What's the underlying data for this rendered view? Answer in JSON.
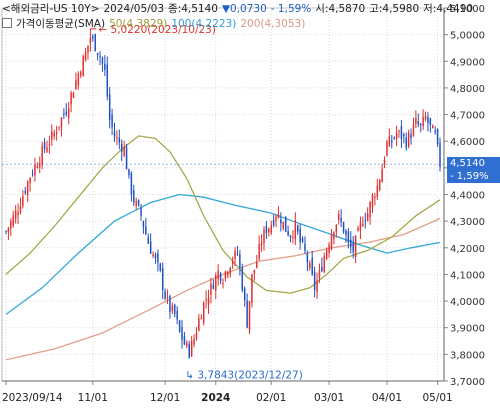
{
  "header": {
    "title": "<해외금리-US 10Y>",
    "date": "2024/05/03",
    "close_label": "종:4,5140",
    "change": "▼0,0730",
    "change_pct": "- 1,59%",
    "open_label": "시:4,5870",
    "high_label": "고:4,5980",
    "low_label": "저:4,4490"
  },
  "legend": {
    "title": "가격이동평균(SMA)",
    "ma50": "50(4,3829)",
    "ma100": "100(4,2223)",
    "ma200": "200(4,3053)"
  },
  "price_tag": {
    "price": "4,5140",
    "pct": "- 1,59%"
  },
  "annotations": {
    "high": "5,0220(2023/10/23)",
    "low": "3,7843(2023/12/27)"
  },
  "colors": {
    "up": "#e03030",
    "down": "#2050c0",
    "ma50": "#a7a84a",
    "ma100": "#34a8d8",
    "ma200": "#e2a08a",
    "tag": "#2e6fd1",
    "grid": "#d9d9d9"
  },
  "chart_data": {
    "type": "candlestick",
    "ylim": [
      3.7,
      5.1
    ],
    "y_ticks": [
      "5,1000",
      "5,0000",
      "4,9000",
      "4,8000",
      "4,7000",
      "4,6000",
      "4,5000",
      "4,4000",
      "4,3000",
      "4,2000",
      "4,1000",
      "4,0000",
      "3,9000",
      "3,8000",
      "3,7000"
    ],
    "x_ticks": [
      "2023/09/14",
      "11/01",
      "12/01",
      "2024",
      "02/01",
      "03/01",
      "04/01",
      "05/01"
    ],
    "close_path": [
      [
        0,
        4.26
      ],
      [
        5,
        4.35
      ],
      [
        10,
        4.47
      ],
      [
        15,
        4.56
      ],
      [
        20,
        4.63
      ],
      [
        25,
        4.72
      ],
      [
        28,
        4.8
      ],
      [
        31,
        4.88
      ],
      [
        33,
        4.93
      ],
      [
        35,
        4.99
      ],
      [
        37,
        4.96
      ],
      [
        39,
        4.92
      ],
      [
        41,
        4.86
      ],
      [
        43,
        4.68
      ],
      [
        45,
        4.62
      ],
      [
        49,
        4.57
      ],
      [
        51,
        4.45
      ],
      [
        53,
        4.38
      ],
      [
        56,
        4.32
      ],
      [
        59,
        4.22
      ],
      [
        62,
        4.15
      ],
      [
        64,
        4.1
      ],
      [
        66,
        4.02
      ],
      [
        68,
        3.97
      ],
      [
        70,
        3.95
      ],
      [
        72,
        3.88
      ],
      [
        74,
        3.84
      ],
      [
        76,
        3.81
      ],
      [
        78,
        3.86
      ],
      [
        80,
        3.93
      ],
      [
        82,
        3.99
      ],
      [
        84,
        4.03
      ],
      [
        86,
        4.07
      ],
      [
        88,
        4.11
      ],
      [
        90,
        4.09
      ],
      [
        92,
        4.13
      ],
      [
        94,
        4.16
      ],
      [
        96,
        4.18
      ],
      [
        98,
        4.06
      ],
      [
        100,
        3.92
      ],
      [
        102,
        4.09
      ],
      [
        104,
        4.15
      ],
      [
        106,
        4.23
      ],
      [
        108,
        4.27
      ],
      [
        110,
        4.29
      ],
      [
        112,
        4.33
      ],
      [
        114,
        4.31
      ],
      [
        116,
        4.27
      ],
      [
        118,
        4.25
      ],
      [
        120,
        4.28
      ],
      [
        122,
        4.22
      ],
      [
        124,
        4.18
      ],
      [
        126,
        4.12
      ],
      [
        128,
        4.05
      ],
      [
        130,
        4.1
      ],
      [
        132,
        4.17
      ],
      [
        134,
        4.23
      ],
      [
        136,
        4.28
      ],
      [
        138,
        4.31
      ],
      [
        140,
        4.27
      ],
      [
        142,
        4.21
      ],
      [
        144,
        4.19
      ],
      [
        146,
        4.25
      ],
      [
        148,
        4.31
      ],
      [
        150,
        4.33
      ],
      [
        152,
        4.39
      ],
      [
        154,
        4.43
      ],
      [
        156,
        4.5
      ],
      [
        158,
        4.59
      ],
      [
        160,
        4.6
      ],
      [
        162,
        4.63
      ],
      [
        164,
        4.62
      ],
      [
        166,
        4.6
      ],
      [
        168,
        4.63
      ],
      [
        170,
        4.67
      ],
      [
        172,
        4.65
      ],
      [
        174,
        4.69
      ],
      [
        176,
        4.65
      ],
      [
        178,
        4.62
      ],
      [
        180,
        4.514
      ]
    ],
    "sma50": [
      [
        0,
        4.1
      ],
      [
        10,
        4.18
      ],
      [
        20,
        4.28
      ],
      [
        30,
        4.39
      ],
      [
        40,
        4.5
      ],
      [
        48,
        4.57
      ],
      [
        55,
        4.62
      ],
      [
        62,
        4.61
      ],
      [
        68,
        4.56
      ],
      [
        75,
        4.46
      ],
      [
        82,
        4.32
      ],
      [
        90,
        4.19
      ],
      [
        100,
        4.09
      ],
      [
        108,
        4.04
      ],
      [
        118,
        4.03
      ],
      [
        126,
        4.05
      ],
      [
        133,
        4.1
      ],
      [
        140,
        4.16
      ],
      [
        150,
        4.19
      ],
      [
        160,
        4.24
      ],
      [
        170,
        4.32
      ],
      [
        180,
        4.38
      ]
    ],
    "sma100": [
      [
        0,
        3.95
      ],
      [
        15,
        4.05
      ],
      [
        30,
        4.18
      ],
      [
        45,
        4.3
      ],
      [
        60,
        4.37
      ],
      [
        72,
        4.4
      ],
      [
        82,
        4.39
      ],
      [
        95,
        4.36
      ],
      [
        110,
        4.33
      ],
      [
        122,
        4.29
      ],
      [
        135,
        4.25
      ],
      [
        147,
        4.21
      ],
      [
        158,
        4.18
      ],
      [
        168,
        4.2
      ],
      [
        180,
        4.22
      ]
    ],
    "sma200": [
      [
        0,
        3.78
      ],
      [
        20,
        3.82
      ],
      [
        40,
        3.88
      ],
      [
        60,
        3.97
      ],
      [
        75,
        4.04
      ],
      [
        90,
        4.1
      ],
      [
        105,
        4.15
      ],
      [
        120,
        4.17
      ],
      [
        135,
        4.2
      ],
      [
        150,
        4.22
      ],
      [
        165,
        4.25
      ],
      [
        180,
        4.31
      ]
    ],
    "last_close": 4.514,
    "high": 5.022,
    "low": 3.7843
  }
}
